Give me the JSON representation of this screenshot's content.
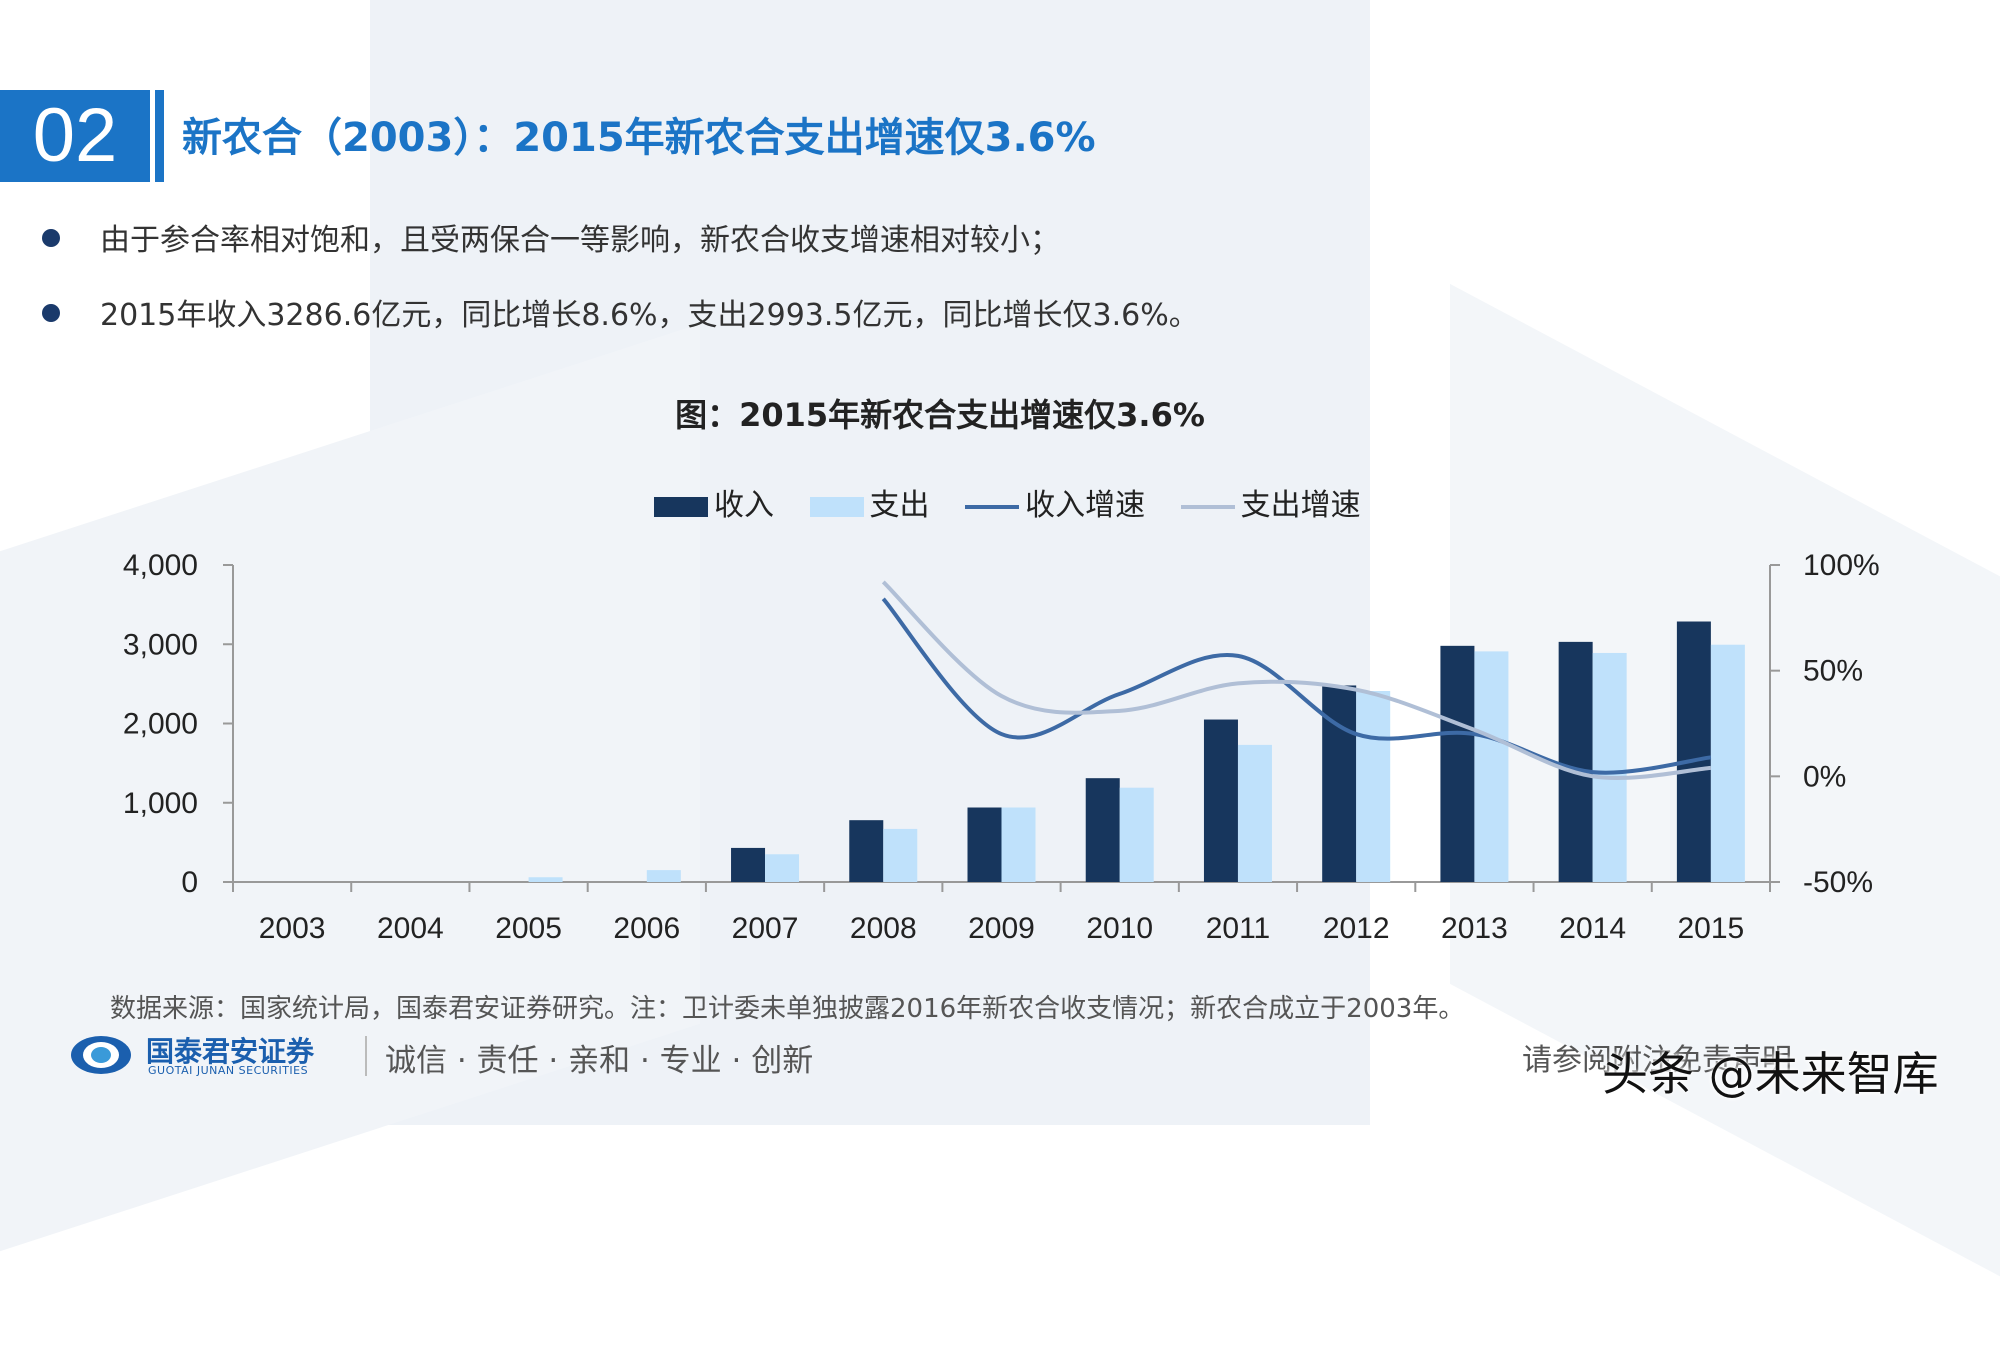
{
  "section_number": "02",
  "page_title": "新农合（2003）：2015年新农合支出增速仅3.6%",
  "bullets": [
    "由于参合率相对饱和，且受两保合一等影响，新农合收支增速相对较小；",
    "2015年收入3286.6亿元，同比增长8.6%，支出2993.5亿元，同比增长仅3.6%。"
  ],
  "colors": {
    "accent": "#1b74c6",
    "income_bar": "#17365d",
    "expense_bar": "#bfe1fb",
    "income_growth_line": "#3d6aa5",
    "expense_growth_line": "#b0bfd6"
  },
  "chart_data": {
    "type": "bar",
    "title": "图：2015年新农合支出增速仅3.6%",
    "categories": [
      "2003",
      "2004",
      "2005",
      "2006",
      "2007",
      "2008",
      "2009",
      "2010",
      "2011",
      "2012",
      "2013",
      "2014",
      "2015"
    ],
    "series": [
      {
        "name": "收入",
        "type": "bar",
        "axis": "left",
        "values": [
          0,
          0,
          0,
          0,
          430,
          780,
          940,
          1310,
          2050,
          2480,
          2980,
          3030,
          3287
        ]
      },
      {
        "name": "支出",
        "type": "bar",
        "axis": "left",
        "values": [
          0,
          0,
          60,
          150,
          350,
          670,
          940,
          1190,
          1730,
          2410,
          2910,
          2890,
          2994
        ]
      },
      {
        "name": "收入增速",
        "type": "line",
        "axis": "right",
        "values": [
          null,
          null,
          null,
          null,
          null,
          84,
          20,
          39,
          57,
          20,
          20,
          2,
          9
        ]
      },
      {
        "name": "支出增速",
        "type": "line",
        "axis": "right",
        "values": [
          null,
          null,
          null,
          null,
          null,
          92,
          38,
          31,
          44,
          41,
          22,
          0,
          4
        ]
      }
    ],
    "y_left": {
      "ylim": [
        0,
        4000
      ],
      "ticks": [
        "0",
        "1,000",
        "2,000",
        "3,000",
        "4,000"
      ]
    },
    "y_right": {
      "ylim": [
        -50,
        100
      ],
      "ticks": [
        "-50%",
        "0%",
        "50%",
        "100%"
      ]
    },
    "legend_position": "top-center",
    "grid": false
  },
  "legend": [
    "收入",
    "支出",
    "收入增速",
    "支出增速"
  ],
  "footnote": "数据来源：国家统计局，国泰君安证券研究。注：卫计委未单独披露2016年新农合收支情况；新农合成立于2003年。",
  "logo": {
    "name_cn": "国泰君安证券",
    "name_en": "GUOTAI JUNAN SECURITIES",
    "icon": "guotai-junan-logo-icon"
  },
  "slogan": "诚信 · 责任 · 亲和 · 专业 · 创新",
  "disclaimer": "请参阅附注免责声明",
  "watermark": "头条 @未来智库"
}
